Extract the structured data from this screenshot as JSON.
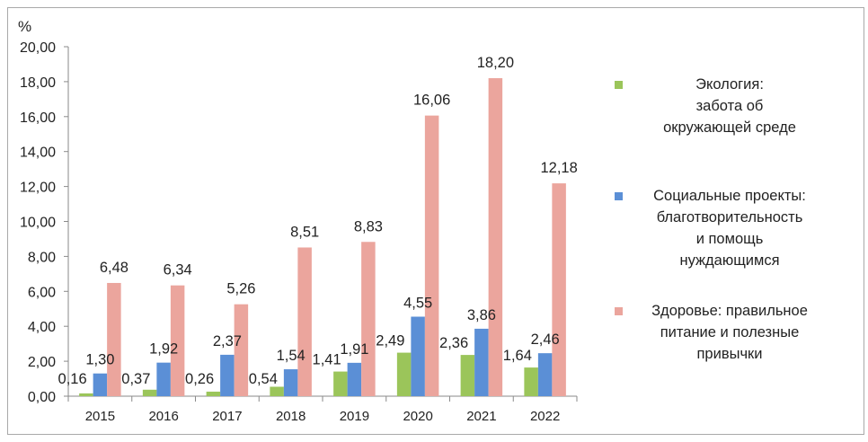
{
  "chart_data": {
    "type": "bar",
    "ylabel": "%",
    "ylim": [
      0,
      20
    ],
    "ytick_step": 2,
    "ytick_labels": [
      "0,00",
      "2,00",
      "4,00",
      "6,00",
      "8,00",
      "10,00",
      "12,00",
      "14,00",
      "16,00",
      "18,00",
      "20,00"
    ],
    "categories": [
      "2015",
      "2016",
      "2017",
      "2018",
      "2019",
      "2020",
      "2021",
      "2022"
    ],
    "series": [
      {
        "name": "Экология: забота об окружающей среде",
        "color": "#9bc55a",
        "values": [
          0.16,
          0.37,
          0.26,
          0.54,
          1.41,
          2.49,
          2.36,
          1.64
        ],
        "labels": [
          "0,16",
          "0,37",
          "0,26",
          "0,54",
          "1,41",
          "2,49",
          "2,36",
          "1,64"
        ]
      },
      {
        "name": "Социальные проекты: благотворительность и помощь нуждающимся",
        "color": "#5b8fd6",
        "values": [
          1.3,
          1.92,
          2.37,
          1.54,
          1.91,
          4.55,
          3.86,
          2.46
        ],
        "labels": [
          "1,30",
          "1,92",
          "2,37",
          "1,54",
          "1,91",
          "4,55",
          "3,86",
          "2,46"
        ]
      },
      {
        "name": "Здоровье: правильное питание и полезные привычки",
        "color": "#eba59d",
        "values": [
          6.48,
          6.34,
          5.26,
          8.51,
          8.83,
          16.06,
          18.2,
          12.18
        ],
        "labels": [
          "6,48",
          "6,34",
          "5,26",
          "8,51",
          "8,83",
          "16,06",
          "18,20",
          "12,18"
        ]
      }
    ],
    "grid": false,
    "legend_position": "right"
  },
  "legend": [
    {
      "lines": [
        "Экология:",
        "забота об",
        "окружающей среде"
      ],
      "color": "#9bc55a"
    },
    {
      "lines": [
        "Социальные проекты:",
        "благотворительность",
        "и помощь",
        "нуждающимся"
      ],
      "color": "#5b8fd6"
    },
    {
      "lines": [
        "Здоровье: правильное",
        "питание и полезные",
        "привычки"
      ],
      "color": "#eba59d"
    }
  ]
}
